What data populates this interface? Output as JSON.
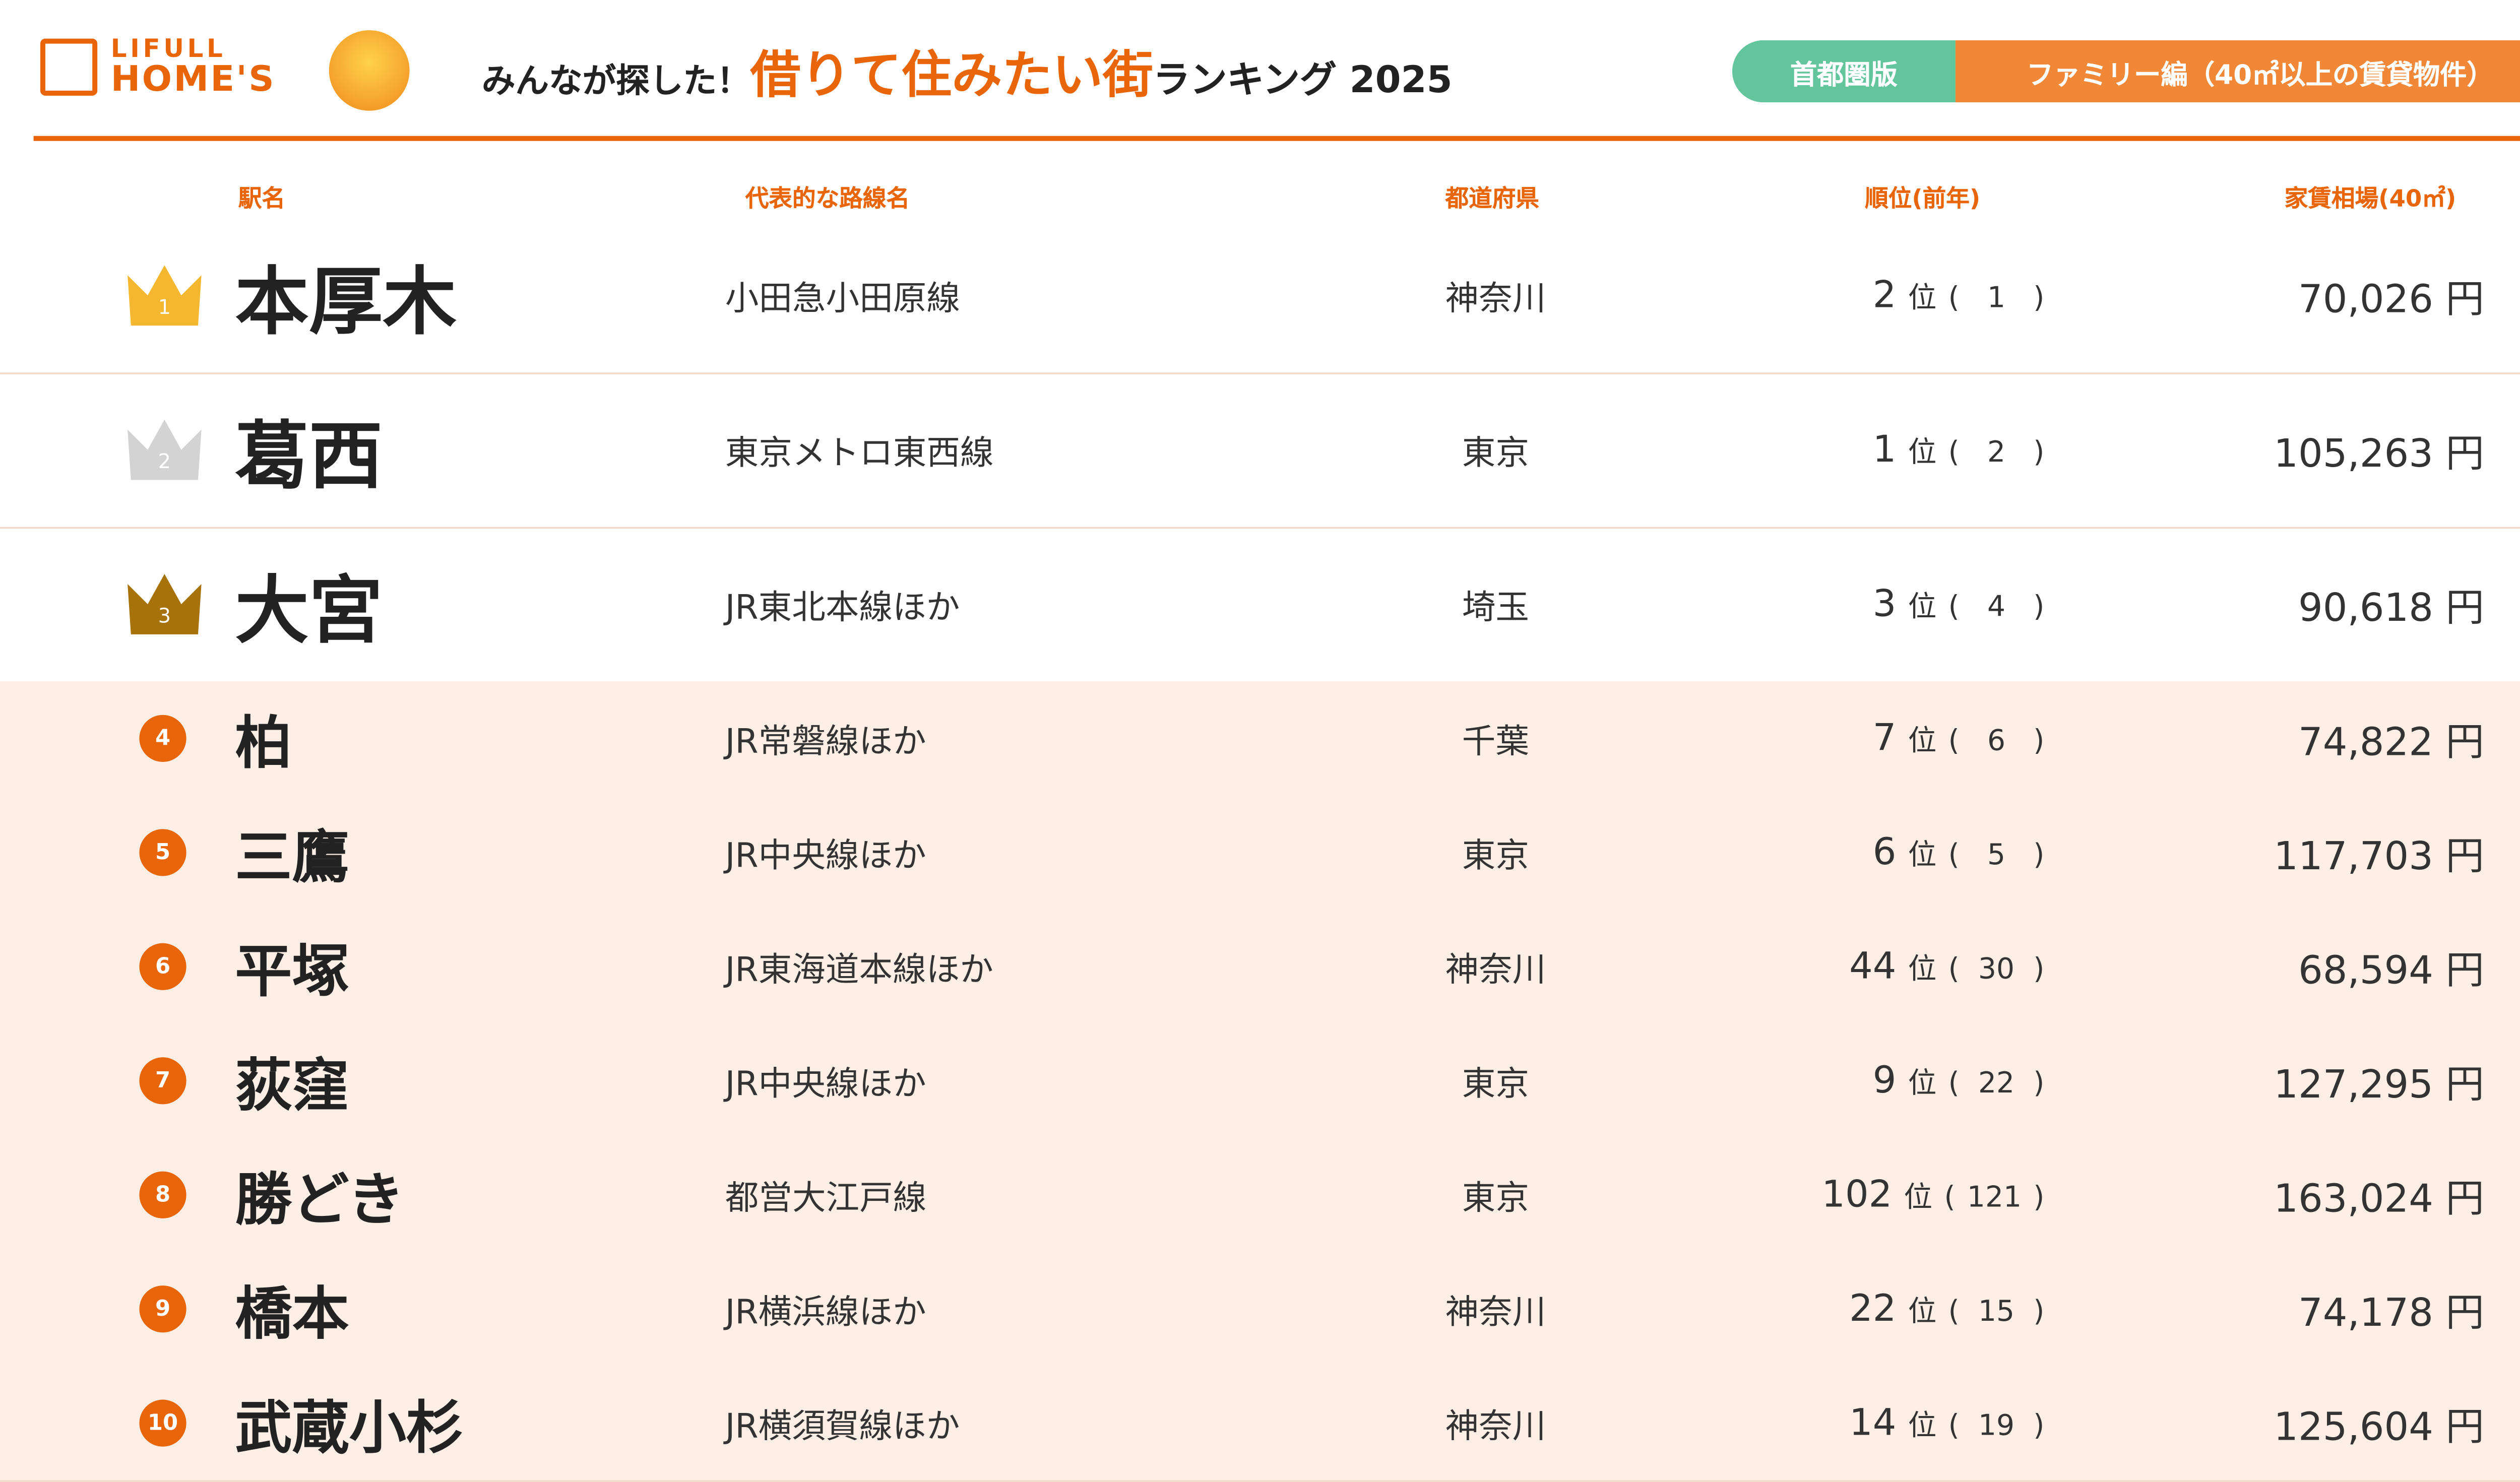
{
  "logo": {
    "line1": "LIFULL",
    "line2": "HOME'S"
  },
  "title": {
    "prefix": "みんなが探した！",
    "main": "借りて住みたい街",
    "suffix": "ランキング 2025"
  },
  "tags": {
    "region": "首都圏版",
    "category": "ファミリー編（40㎡以上の賃貸物件）"
  },
  "colors": {
    "accent": "#e8650a",
    "region_tag": "#62c59b",
    "category_tag": "#f08838",
    "row_highlight": "#fdefe6",
    "gold": "#f5b730",
    "silver": "#d3d3d3",
    "bronze": "#a8720a"
  },
  "headers": {
    "station": "駅名",
    "line": "代表的な路線名",
    "prefecture": "都道府県",
    "rank": "順位(前年)",
    "rent": "家賃相場(40㎡)"
  },
  "rows": [
    {
      "no": "1",
      "station": "本厚木",
      "line": "小田急小田原線",
      "prefecture": "神奈川",
      "rank": "2",
      "prev": "1",
      "rent": "70,026",
      "icon": "gold-crown-icon"
    },
    {
      "no": "2",
      "station": "葛西",
      "line": "東京メトロ東西線",
      "prefecture": "東京",
      "rank": "1",
      "prev": "2",
      "rent": "105,263",
      "icon": "silver-crown-icon"
    },
    {
      "no": "3",
      "station": "大宮",
      "line": "JR東北本線ほか",
      "prefecture": "埼玉",
      "rank": "3",
      "prev": "4",
      "rent": "90,618",
      "icon": "bronze-crown-icon"
    },
    {
      "no": "4",
      "station": "柏",
      "line": "JR常磐線ほか",
      "prefecture": "千葉",
      "rank": "7",
      "prev": "6",
      "rent": "74,822"
    },
    {
      "no": "5",
      "station": "三鷹",
      "line": "JR中央線ほか",
      "prefecture": "東京",
      "rank": "6",
      "prev": "5",
      "rent": "117,703"
    },
    {
      "no": "6",
      "station": "平塚",
      "line": "JR東海道本線ほか",
      "prefecture": "神奈川",
      "rank": "44",
      "prev": "30",
      "rent": "68,594"
    },
    {
      "no": "7",
      "station": "荻窪",
      "line": "JR中央線ほか",
      "prefecture": "東京",
      "rank": "9",
      "prev": "22",
      "rent": "127,295"
    },
    {
      "no": "8",
      "station": "勝どき",
      "line": "都営大江戸線",
      "prefecture": "東京",
      "rank": "102",
      "prev": "121",
      "rent": "163,024"
    },
    {
      "no": "9",
      "station": "橋本",
      "line": "JR横浜線ほか",
      "prefecture": "神奈川",
      "rank": "22",
      "prev": "15",
      "rent": "74,178"
    },
    {
      "no": "10",
      "station": "武蔵小杉",
      "line": "JR横須賀線ほか",
      "prefecture": "神奈川",
      "rank": "14",
      "prev": "19",
      "rent": "125,604"
    }
  ],
  "units": {
    "rank": "位",
    "yen": "円",
    "open": "(",
    "close": ")"
  }
}
